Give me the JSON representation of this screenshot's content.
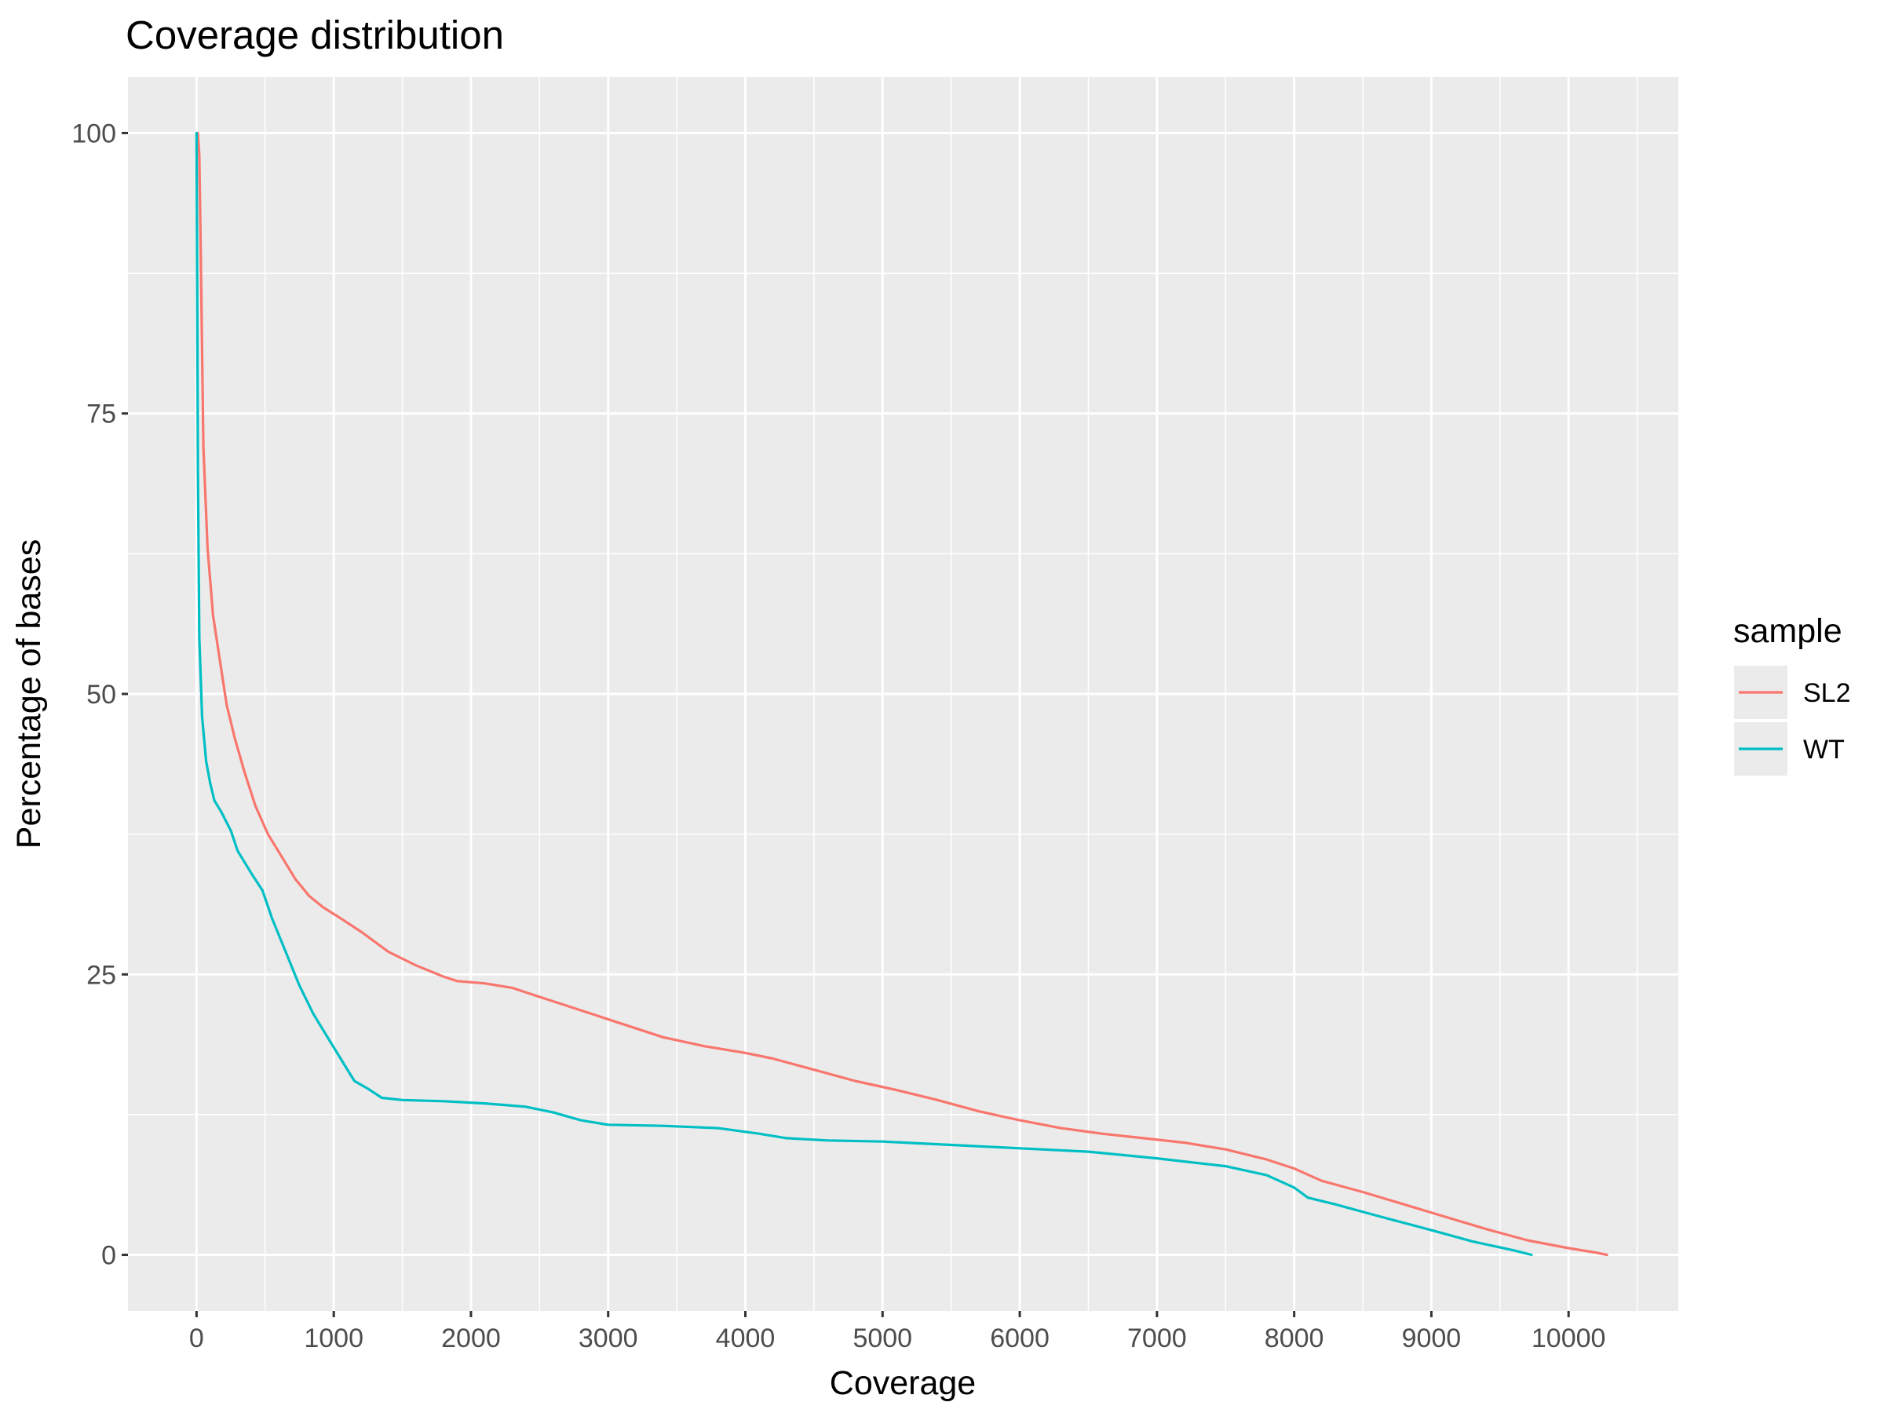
{
  "chart_data": {
    "type": "line",
    "title": "Coverage distribution",
    "xlabel": "Coverage",
    "ylabel": "Percentage of bases",
    "xlim": [
      -500,
      10800
    ],
    "ylim": [
      -5,
      105
    ],
    "x_ticks": [
      0,
      1000,
      2000,
      3000,
      4000,
      5000,
      6000,
      7000,
      8000,
      9000,
      10000
    ],
    "x_tick_labels": [
      "0",
      "1000",
      "2000",
      "3000",
      "4000",
      "5000",
      "6000",
      "7000",
      "8000",
      "9000",
      "10000"
    ],
    "y_ticks": [
      0,
      25,
      50,
      75,
      100
    ],
    "y_tick_labels": [
      "0",
      "25",
      "50",
      "75",
      "100"
    ],
    "grid": true,
    "legend": {
      "title": "sample",
      "position": "right"
    },
    "series": [
      {
        "name": "SL2",
        "color": "#F8766D",
        "points": [
          [
            0,
            100
          ],
          [
            10,
            100
          ],
          [
            20,
            98
          ],
          [
            30,
            90
          ],
          [
            50,
            72
          ],
          [
            80,
            63
          ],
          [
            120,
            57
          ],
          [
            170,
            53
          ],
          [
            220,
            49
          ],
          [
            280,
            46
          ],
          [
            350,
            43
          ],
          [
            430,
            40
          ],
          [
            520,
            37.5
          ],
          [
            620,
            35.5
          ],
          [
            720,
            33.5
          ],
          [
            820,
            32
          ],
          [
            920,
            31
          ],
          [
            1050,
            30
          ],
          [
            1200,
            28.8
          ],
          [
            1400,
            27
          ],
          [
            1600,
            25.8
          ],
          [
            1800,
            24.8
          ],
          [
            1900,
            24.4
          ],
          [
            2100,
            24.2
          ],
          [
            2300,
            23.8
          ],
          [
            2500,
            23
          ],
          [
            2800,
            21.8
          ],
          [
            3100,
            20.6
          ],
          [
            3400,
            19.4
          ],
          [
            3700,
            18.6
          ],
          [
            4000,
            18
          ],
          [
            4200,
            17.5
          ],
          [
            4500,
            16.5
          ],
          [
            4800,
            15.5
          ],
          [
            5100,
            14.7
          ],
          [
            5400,
            13.8
          ],
          [
            5700,
            12.8
          ],
          [
            6000,
            12
          ],
          [
            6300,
            11.3
          ],
          [
            6600,
            10.8
          ],
          [
            6900,
            10.4
          ],
          [
            7200,
            10
          ],
          [
            7500,
            9.4
          ],
          [
            7800,
            8.5
          ],
          [
            8000,
            7.7
          ],
          [
            8200,
            6.6
          ],
          [
            8500,
            5.6
          ],
          [
            8800,
            4.5
          ],
          [
            9100,
            3.4
          ],
          [
            9400,
            2.3
          ],
          [
            9700,
            1.3
          ],
          [
            10000,
            0.6
          ],
          [
            10200,
            0.2
          ],
          [
            10280,
            0
          ]
        ]
      },
      {
        "name": "WT",
        "color": "#00BFC4",
        "points": [
          [
            0,
            100
          ],
          [
            5,
            85
          ],
          [
            10,
            70
          ],
          [
            20,
            55
          ],
          [
            40,
            48
          ],
          [
            70,
            44
          ],
          [
            100,
            42
          ],
          [
            130,
            40.5
          ],
          [
            180,
            39.5
          ],
          [
            250,
            37.8
          ],
          [
            300,
            36
          ],
          [
            400,
            34
          ],
          [
            480,
            32.5
          ],
          [
            550,
            30
          ],
          [
            650,
            27
          ],
          [
            750,
            24
          ],
          [
            850,
            21.5
          ],
          [
            950,
            19.5
          ],
          [
            1050,
            17.5
          ],
          [
            1150,
            15.5
          ],
          [
            1250,
            14.8
          ],
          [
            1350,
            14
          ],
          [
            1500,
            13.8
          ],
          [
            1800,
            13.7
          ],
          [
            2100,
            13.5
          ],
          [
            2400,
            13.2
          ],
          [
            2600,
            12.7
          ],
          [
            2800,
            12
          ],
          [
            3000,
            11.6
          ],
          [
            3400,
            11.5
          ],
          [
            3800,
            11.3
          ],
          [
            4100,
            10.8
          ],
          [
            4300,
            10.4
          ],
          [
            4600,
            10.2
          ],
          [
            5000,
            10.1
          ],
          [
            5500,
            9.8
          ],
          [
            6000,
            9.5
          ],
          [
            6500,
            9.2
          ],
          [
            7000,
            8.6
          ],
          [
            7500,
            7.9
          ],
          [
            7800,
            7.1
          ],
          [
            8000,
            6
          ],
          [
            8100,
            5.1
          ],
          [
            8300,
            4.5
          ],
          [
            8600,
            3.5
          ],
          [
            9000,
            2.2
          ],
          [
            9300,
            1.2
          ],
          [
            9600,
            0.4
          ],
          [
            9730,
            0
          ]
        ]
      }
    ]
  }
}
